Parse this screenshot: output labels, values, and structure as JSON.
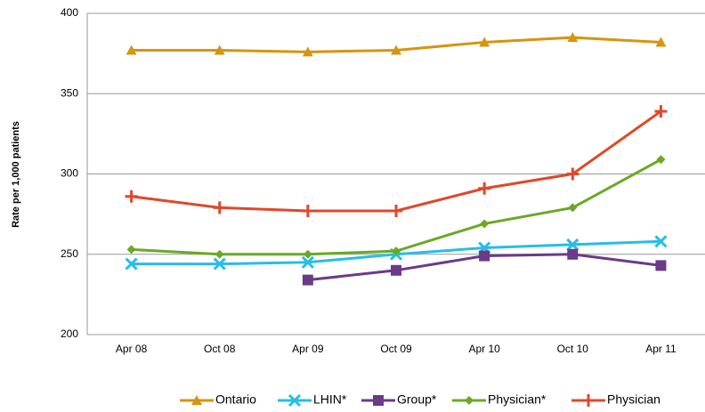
{
  "chart_data": {
    "type": "line",
    "y_label": "Rate per 1,000 patients",
    "categories": [
      "Apr 08",
      "Oct 08",
      "Apr 09",
      "Oct 09",
      "Apr 10",
      "Oct 10",
      "Apr 11"
    ],
    "series": [
      {
        "name": "Ontario",
        "color": "#d6950f",
        "marker": "triangle",
        "values": [
          377,
          377,
          376,
          377,
          382,
          385,
          382
        ]
      },
      {
        "name": "LHIN*",
        "color": "#27bde8",
        "marker": "x",
        "values": [
          244,
          244,
          245,
          250,
          254,
          256,
          258
        ]
      },
      {
        "name": "Group*",
        "color": "#6b3a88",
        "marker": "square",
        "values": [
          null,
          null,
          234,
          240,
          249,
          250,
          243
        ]
      },
      {
        "name": "Physician*",
        "color": "#6aa924",
        "marker": "diamond",
        "values": [
          253,
          250,
          250,
          252,
          269,
          279,
          309
        ]
      },
      {
        "name": "Physician",
        "color": "#e0482a",
        "marker": "plus",
        "values": [
          286,
          279,
          277,
          277,
          291,
          300,
          339
        ]
      }
    ],
    "ylim": [
      200,
      400
    ],
    "yticks": [
      200,
      250,
      300,
      350,
      400
    ],
    "grid": true,
    "legend": "bottom"
  }
}
